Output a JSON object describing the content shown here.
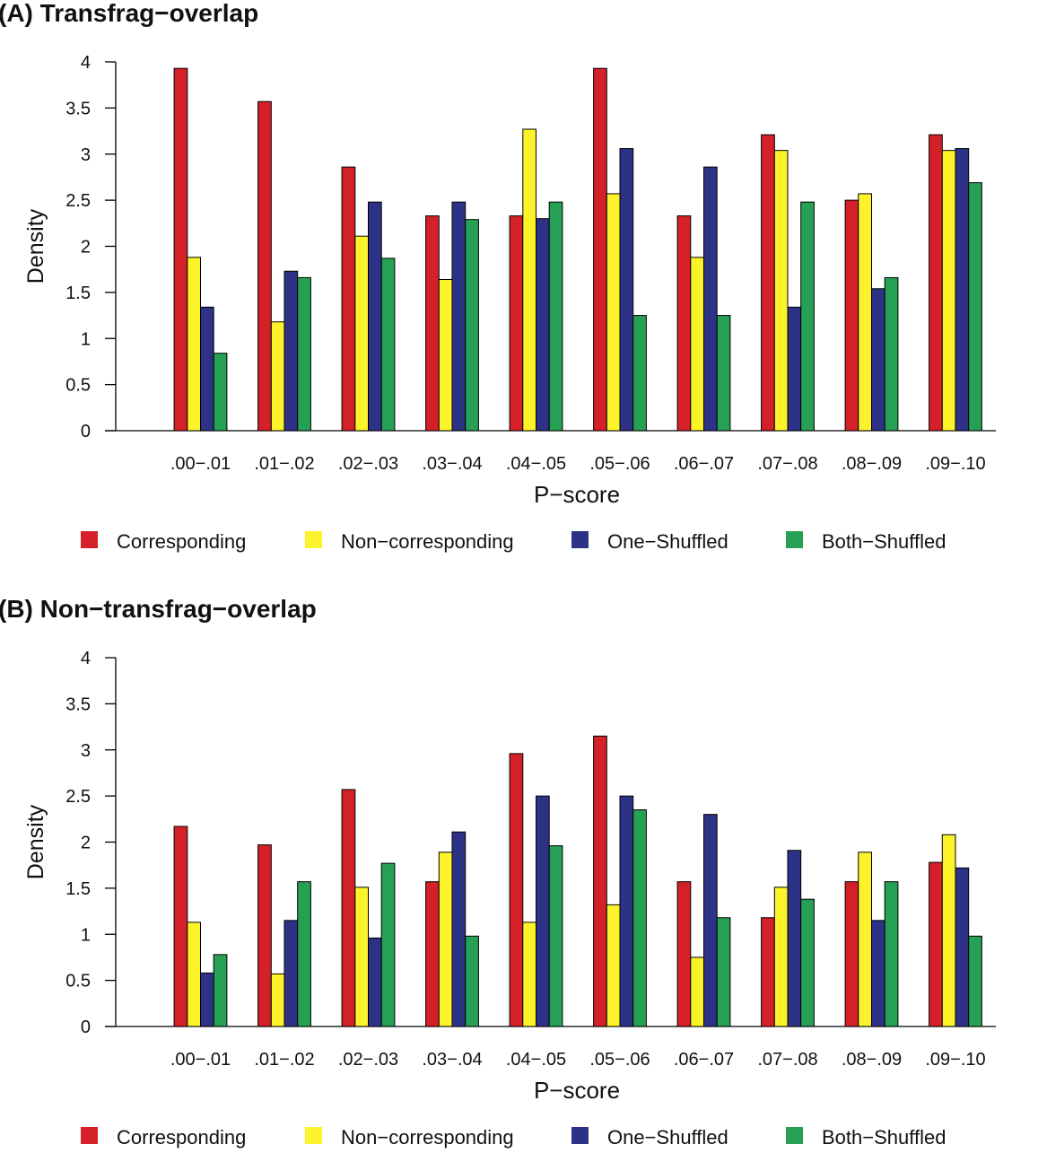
{
  "chart_data": [
    {
      "type": "bar",
      "title": "(A) Transfrag−overlap",
      "xlabel": "P−score",
      "ylabel": "Density",
      "ylim": [
        0,
        4
      ],
      "yticks": [
        "0",
        "0.5",
        "1",
        "1.5",
        "2",
        "2.5",
        "3",
        "3.5",
        "4"
      ],
      "categories": [
        ".00−.01",
        ".01−.02",
        ".02−.03",
        ".03−.04",
        ".04−.05",
        ".05−.06",
        ".06−.07",
        ".07−.08",
        ".08−.09",
        ".09−.10"
      ],
      "legend_position": "bottom",
      "series": [
        {
          "name": "Corresponding",
          "color": "#d42027",
          "values": [
            3.93,
            3.57,
            2.86,
            2.33,
            2.33,
            3.93,
            2.33,
            3.21,
            2.5,
            3.21
          ]
        },
        {
          "name": "Non−corresponding",
          "color": "#fcf32b",
          "values": [
            1.88,
            1.18,
            2.11,
            1.64,
            3.27,
            2.57,
            1.88,
            3.04,
            2.57,
            3.04
          ]
        },
        {
          "name": "One−Shuffled",
          "color": "#2e3287",
          "values": [
            1.34,
            1.73,
            2.48,
            2.48,
            2.3,
            3.06,
            2.86,
            1.34,
            1.54,
            3.06
          ]
        },
        {
          "name": "Both−Shuffled",
          "color": "#26a055",
          "values": [
            0.84,
            1.66,
            1.87,
            2.29,
            2.48,
            1.25,
            1.25,
            2.48,
            1.66,
            2.69
          ]
        }
      ]
    },
    {
      "type": "bar",
      "title": "(B) Non−transfrag−overlap",
      "xlabel": "P−score",
      "ylabel": "Density",
      "ylim": [
        0,
        4
      ],
      "yticks": [
        "0",
        "0.5",
        "1",
        "1.5",
        "2",
        "2.5",
        "3",
        "3.5",
        "4"
      ],
      "categories": [
        ".00−.01",
        ".01−.02",
        ".02−.03",
        ".03−.04",
        ".04−.05",
        ".05−.06",
        ".06−.07",
        ".07−.08",
        ".08−.09",
        ".09−.10"
      ],
      "legend_position": "bottom",
      "series": [
        {
          "name": "Corresponding",
          "color": "#d42027",
          "values": [
            2.17,
            1.97,
            2.57,
            1.57,
            2.96,
            3.15,
            1.57,
            1.18,
            1.57,
            1.78
          ]
        },
        {
          "name": "Non−corresponding",
          "color": "#fcf32b",
          "values": [
            1.13,
            0.57,
            1.51,
            1.89,
            1.13,
            1.32,
            0.75,
            1.51,
            1.89,
            2.08
          ]
        },
        {
          "name": "One−Shuffled",
          "color": "#2e3287",
          "values": [
            0.58,
            1.15,
            0.96,
            2.11,
            2.5,
            2.5,
            2.3,
            1.91,
            1.15,
            1.72
          ]
        },
        {
          "name": "Both−Shuffled",
          "color": "#26a055",
          "values": [
            0.78,
            1.57,
            1.77,
            0.98,
            1.96,
            2.35,
            1.18,
            1.38,
            1.57,
            0.98
          ]
        }
      ]
    }
  ]
}
